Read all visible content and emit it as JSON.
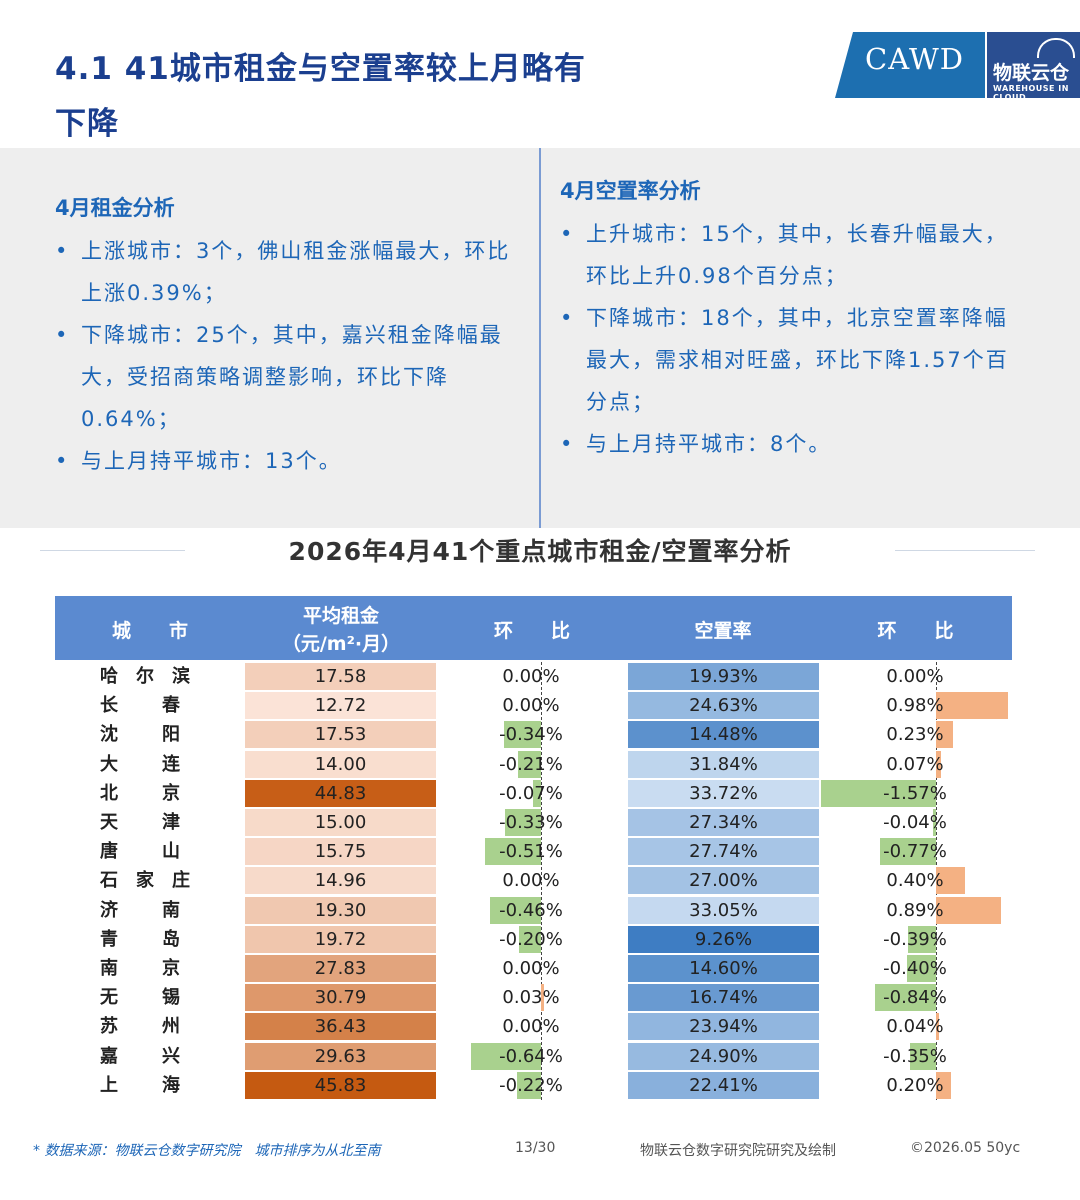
{
  "header": {
    "title_line1": "4.1 41城市租金与空置率较上月略有",
    "title_line2": "下降",
    "logo": {
      "cawd": "CAWD",
      "cn": "物联云仓",
      "en": "WAREHOUSE IN CLOUD"
    }
  },
  "rent_analysis": {
    "title": "4月租金分析",
    "items": [
      "上涨城市：3个，佛山租金涨幅最大，环比上涨0.39%；",
      "下降城市：25个，其中，嘉兴租金降幅最大，受招商策略调整影响，环比下降0.64%；",
      "与上月持平城市：13个。"
    ]
  },
  "vacancy_analysis": {
    "title": "4月空置率分析",
    "items": [
      "上升城市：15个，其中，长春升幅最大，环比上升0.98个百分点；",
      "下降城市：18个，其中，北京空置率降幅最大，需求相对旺盛，环比下降1.57个百分点；",
      "与上月持平城市：8个。"
    ]
  },
  "table": {
    "title": "2026年4月41个重点城市租金/空置率分析",
    "headers": {
      "city": "城　　市",
      "rent_line1": "平均租金",
      "rent_line2": "（元/m²·月）",
      "rent_mom": "环　　比",
      "vacancy": "空置率",
      "vacancy_mom": "环　　比"
    },
    "rows": [
      {
        "city": "哈尔滨",
        "rent": 17.58,
        "rent_mom": "0.00%",
        "rent_mom_val": 0.0,
        "vacancy": "19.93%",
        "vacancy_val": 19.93,
        "vac_mom": "0.00%",
        "vac_mom_val": 0.0
      },
      {
        "city": "长春",
        "rent": 12.72,
        "rent_mom": "0.00%",
        "rent_mom_val": 0.0,
        "vacancy": "24.63%",
        "vacancy_val": 24.63,
        "vac_mom": "0.98%",
        "vac_mom_val": 0.98
      },
      {
        "city": "沈阳",
        "rent": 17.53,
        "rent_mom": "-0.34%",
        "rent_mom_val": -0.34,
        "vacancy": "14.48%",
        "vacancy_val": 14.48,
        "vac_mom": "0.23%",
        "vac_mom_val": 0.23
      },
      {
        "city": "大连",
        "rent": 14.0,
        "rent_mom": "-0.21%",
        "rent_mom_val": -0.21,
        "vacancy": "31.84%",
        "vacancy_val": 31.84,
        "vac_mom": "0.07%",
        "vac_mom_val": 0.07
      },
      {
        "city": "北京",
        "rent": 44.83,
        "rent_mom": "-0.07%",
        "rent_mom_val": -0.07,
        "vacancy": "33.72%",
        "vacancy_val": 33.72,
        "vac_mom": "-1.57%",
        "vac_mom_val": -1.57
      },
      {
        "city": "天津",
        "rent": 15.0,
        "rent_mom": "-0.33%",
        "rent_mom_val": -0.33,
        "vacancy": "27.34%",
        "vacancy_val": 27.34,
        "vac_mom": "-0.04%",
        "vac_mom_val": -0.04
      },
      {
        "city": "唐山",
        "rent": 15.75,
        "rent_mom": "-0.51%",
        "rent_mom_val": -0.51,
        "vacancy": "27.74%",
        "vacancy_val": 27.74,
        "vac_mom": "-0.77%",
        "vac_mom_val": -0.77
      },
      {
        "city": "石家庄",
        "rent": 14.96,
        "rent_mom": "0.00%",
        "rent_mom_val": 0.0,
        "vacancy": "27.00%",
        "vacancy_val": 27.0,
        "vac_mom": "0.40%",
        "vac_mom_val": 0.4
      },
      {
        "city": "济南",
        "rent": 19.3,
        "rent_mom": "-0.46%",
        "rent_mom_val": -0.46,
        "vacancy": "33.05%",
        "vacancy_val": 33.05,
        "vac_mom": "0.89%",
        "vac_mom_val": 0.89
      },
      {
        "city": "青岛",
        "rent": 19.72,
        "rent_mom": "-0.20%",
        "rent_mom_val": -0.2,
        "vacancy": "9.26%",
        "vacancy_val": 9.26,
        "vac_mom": "-0.39%",
        "vac_mom_val": -0.39
      },
      {
        "city": "南京",
        "rent": 27.83,
        "rent_mom": "0.00%",
        "rent_mom_val": 0.0,
        "vacancy": "14.60%",
        "vacancy_val": 14.6,
        "vac_mom": "-0.40%",
        "vac_mom_val": -0.4
      },
      {
        "city": "无锡",
        "rent": 30.79,
        "rent_mom": "0.03%",
        "rent_mom_val": 0.03,
        "vacancy": "16.74%",
        "vacancy_val": 16.74,
        "vac_mom": "-0.84%",
        "vac_mom_val": -0.84
      },
      {
        "city": "苏州",
        "rent": 36.43,
        "rent_mom": "0.00%",
        "rent_mom_val": 0.0,
        "vacancy": "23.94%",
        "vacancy_val": 23.94,
        "vac_mom": "0.04%",
        "vac_mom_val": 0.04
      },
      {
        "city": "嘉兴",
        "rent": 29.63,
        "rent_mom": "-0.64%",
        "rent_mom_val": -0.64,
        "vacancy": "24.90%",
        "vacancy_val": 24.9,
        "vac_mom": "-0.35%",
        "vac_mom_val": -0.35
      },
      {
        "city": "上海",
        "rent": 45.83,
        "rent_mom": "-0.22%",
        "rent_mom_val": -0.22,
        "vacancy": "22.41%",
        "vacancy_val": 22.41,
        "vac_mom": "0.20%",
        "vac_mom_val": 0.2
      }
    ]
  },
  "colors": {
    "title": "#1b3f8f",
    "text_blue": "#1d66b7",
    "header_bg": "#5b8ad0",
    "rent_low": "#fbe3d7",
    "rent_high": "#c55a11",
    "vac_low": "#c9dcf1",
    "vac_high": "#3e7dc3",
    "neg_bar": "#a9d18e",
    "pos_bar": "#f4b183"
  },
  "footer": {
    "source": "* 数据来源：物联云仓数字研究院　城市排序为从北至南",
    "page": "13/30",
    "credit": "物联云仓数字研究院研究及绘制",
    "copyright": "©2026.05 50yc"
  }
}
